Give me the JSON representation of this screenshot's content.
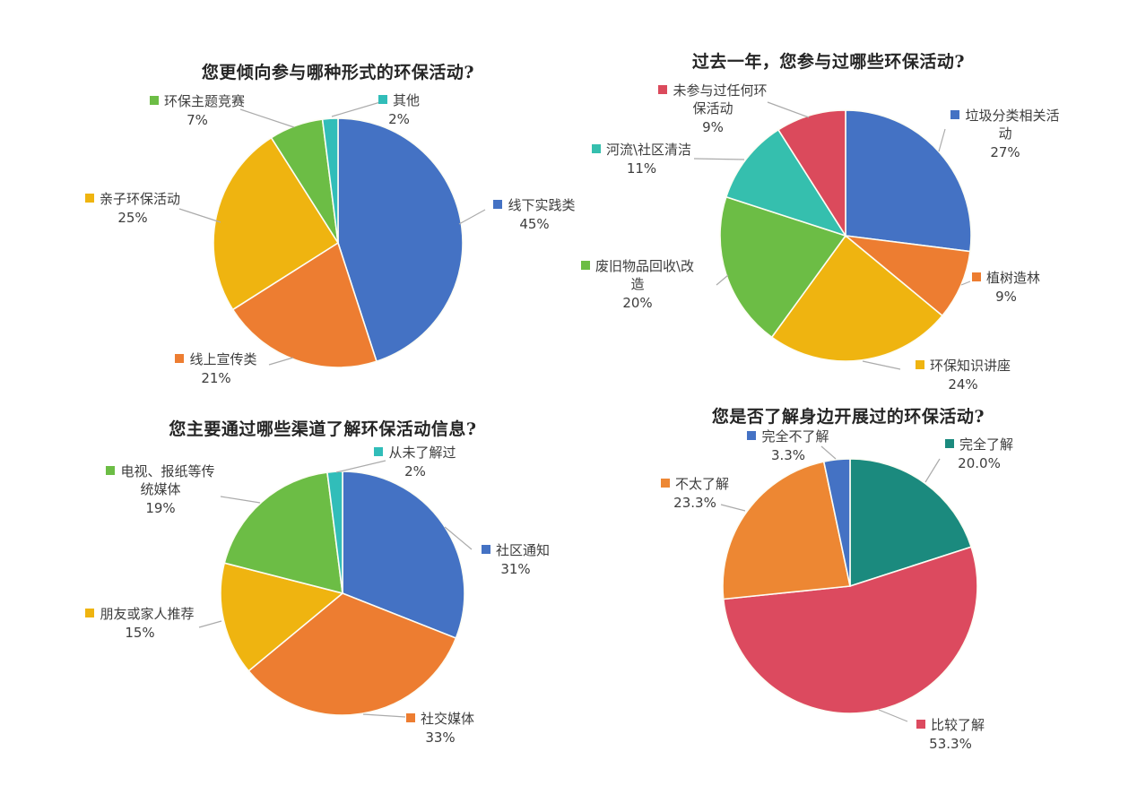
{
  "page": {
    "background": "#ffffff"
  },
  "chart_data": [
    {
      "type": "pie",
      "title": "您更倾向参与哪种形式的环保活动?",
      "label_style": "outside-callout",
      "start_angle_deg": -90,
      "direction": "clockwise",
      "slices": [
        {
          "label": "线下实践类",
          "value": 45,
          "pct": "45%",
          "color": "#4472C4"
        },
        {
          "label": "线上宣传类",
          "value": 21,
          "pct": "21%",
          "color": "#ED7D31"
        },
        {
          "label": "亲子环保活动",
          "value": 25,
          "pct": "25%",
          "color": "#EFB410"
        },
        {
          "label": "环保主题竞赛",
          "value": 7,
          "pct": "7%",
          "color": "#6CBD45"
        },
        {
          "label": "其他",
          "value": 2,
          "pct": "2%",
          "color": "#31BDB9"
        }
      ]
    },
    {
      "type": "pie",
      "title": "过去一年，您参与过哪些环保活动?",
      "label_style": "outside-callout",
      "start_angle_deg": -90,
      "direction": "clockwise",
      "slices": [
        {
          "label": "垃圾分类相关活动",
          "value": 27,
          "pct": "27%",
          "color": "#4472C4"
        },
        {
          "label": "植树造林",
          "value": 9,
          "pct": "9%",
          "color": "#ED7D31"
        },
        {
          "label": "环保知识讲座",
          "value": 24,
          "pct": "24%",
          "color": "#EFB410"
        },
        {
          "label": "废旧物品回收\\改造",
          "value": 20,
          "pct": "20%",
          "color": "#6CBD45"
        },
        {
          "label": "河流\\社区清洁",
          "value": 11,
          "pct": "11%",
          "color": "#35BFAE"
        },
        {
          "label": "未参与过任何环保活动",
          "value": 9,
          "pct": "9%",
          "color": "#DB4A5C"
        }
      ]
    },
    {
      "type": "pie",
      "title": "您主要通过哪些渠道了解环保活动信息?",
      "label_style": "outside-callout",
      "start_angle_deg": -90,
      "direction": "clockwise",
      "slices": [
        {
          "label": "社区通知",
          "value": 31,
          "pct": "31%",
          "color": "#4472C4"
        },
        {
          "label": "社交媒体",
          "value": 33,
          "pct": "33%",
          "color": "#ED7D31"
        },
        {
          "label": "朋友或家人推荐",
          "value": 15,
          "pct": "15%",
          "color": "#EFB410"
        },
        {
          "label": "电视、报纸等传统媒体",
          "value": 19,
          "pct": "19%",
          "color": "#6CBD45"
        },
        {
          "label": "从未了解过",
          "value": 2,
          "pct": "2%",
          "color": "#31BDB9"
        }
      ]
    },
    {
      "type": "pie",
      "title": "您是否了解身边开展过的环保活动?",
      "label_style": "outside-callout",
      "start_angle_deg": -90,
      "direction": "clockwise",
      "slices": [
        {
          "label": "完全了解",
          "value": 20.0,
          "pct": "20.0%",
          "color": "#1B8A7E"
        },
        {
          "label": "比较了解",
          "value": 53.3,
          "pct": "53.3%",
          "color": "#DC4A5F"
        },
        {
          "label": "不太了解",
          "value": 23.3,
          "pct": "23.3%",
          "color": "#ED8733"
        },
        {
          "label": "完全不了解",
          "value": 3.3,
          "pct": "3.3%",
          "color": "#4472C4"
        }
      ]
    }
  ]
}
